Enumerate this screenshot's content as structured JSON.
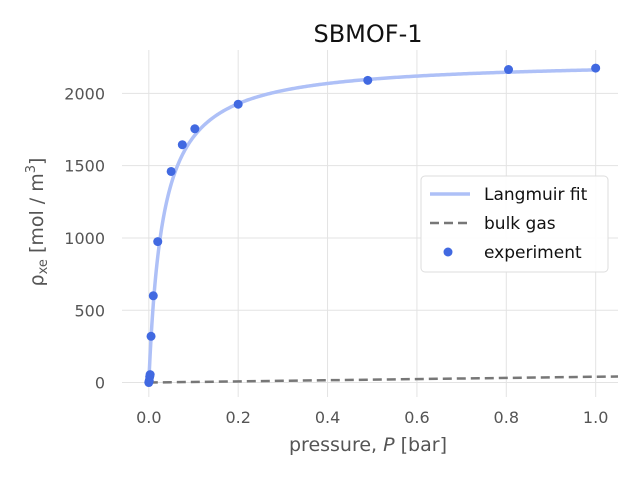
{
  "chart_data": {
    "type": "scatter",
    "title": "SBMOF-1",
    "xlabel_prefix": "pressure, ",
    "xlabel_var": "P",
    "xlabel_suffix": " [bar]",
    "ylabel_main": "ρ",
    "ylabel_sub": "xe",
    "ylabel_units": " [mol / m",
    "ylabel_units_sup": "3",
    "ylabel_close": "]",
    "xlim": [
      -0.06,
      1.05
    ],
    "ylim": [
      -100,
      2300
    ],
    "x_ticks": [
      0.0,
      0.2,
      0.4,
      0.6,
      0.8,
      1.0
    ],
    "x_tick_labels": [
      "0.0",
      "0.2",
      "0.4",
      "0.6",
      "0.8",
      "1.0"
    ],
    "y_ticks": [
      0,
      500,
      1000,
      1500,
      2000
    ],
    "y_tick_labels": [
      "0",
      "500",
      "1000",
      "1500",
      "2000"
    ],
    "grid": true,
    "legend_position": "center-right",
    "series": [
      {
        "name": "Langmuir fit",
        "kind": "line",
        "style": "solid",
        "color": "#aec0f7",
        "model": "langmuir",
        "q_max": 2230,
        "K": 32,
        "x_range": [
          0.0,
          1.0
        ]
      },
      {
        "name": "bulk gas",
        "kind": "line",
        "style": "dashed",
        "color": "#777777",
        "x": [
          0.0,
          1.05
        ],
        "y": [
          0,
          42
        ]
      },
      {
        "name": "experiment",
        "kind": "scatter",
        "color": "#4169e1",
        "x": [
          0.0,
          0.001,
          0.002,
          0.003,
          0.005,
          0.01,
          0.02,
          0.05,
          0.075,
          0.103,
          0.2,
          0.49,
          0.805,
          1.0
        ],
        "y": [
          0,
          15,
          40,
          55,
          320,
          600,
          975,
          1460,
          1645,
          1755,
          1925,
          2090,
          2165,
          2175
        ]
      }
    ]
  }
}
